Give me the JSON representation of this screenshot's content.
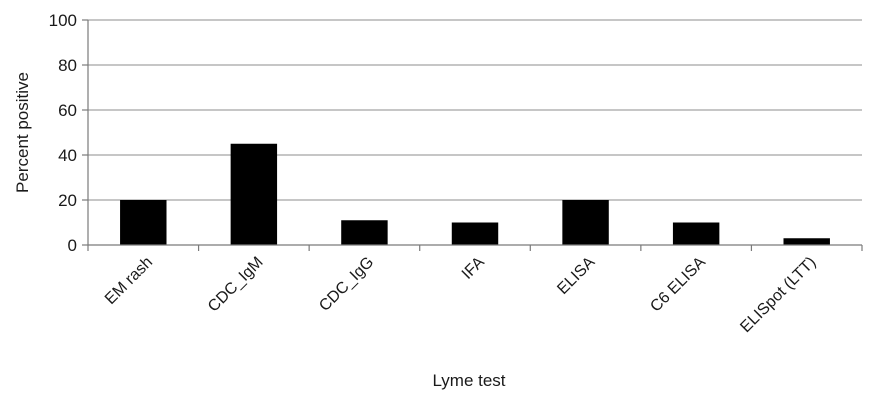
{
  "chart_data": {
    "type": "bar",
    "title": "",
    "xlabel": "Lyme test",
    "ylabel": "Percent positive",
    "ylim": [
      0,
      100
    ],
    "yticks": [
      0,
      20,
      40,
      60,
      80,
      100
    ],
    "grid": true,
    "legend": "none",
    "bar_color": "#000000",
    "categories": [
      "EM rash",
      "CDC_IgM",
      "CDC_IgG",
      "IFA",
      "ELISA",
      "C6 ELISA",
      "ELISpot (LTT)"
    ],
    "values": [
      20,
      45,
      11,
      10,
      20,
      10,
      3
    ]
  }
}
